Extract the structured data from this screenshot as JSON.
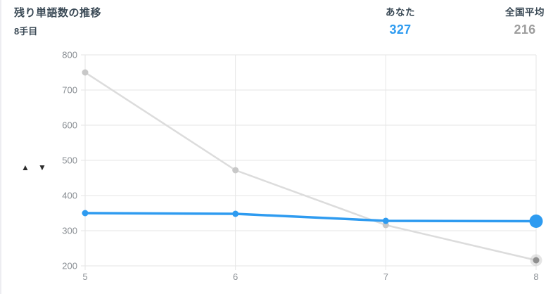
{
  "header": {
    "title": "残り単語数の推移",
    "move_label": "8手目",
    "you": {
      "label": "あなた",
      "value": "327"
    },
    "national": {
      "label": "全国平均",
      "value": "216"
    }
  },
  "controls": {
    "up_arrow": "▲",
    "down_arrow": "▼"
  },
  "colors": {
    "accent_blue": "#2e9bf0",
    "muted_gray": "#9e9e9e",
    "grid": "#e6e6e6",
    "axis_text": "#8a8f94",
    "title_text": "#3b4a56"
  },
  "chart_data": {
    "type": "line",
    "title": "残り単語数の推移",
    "x": [
      5,
      6,
      7,
      8
    ],
    "xtick_labels": [
      "5",
      "6",
      "7",
      "8"
    ],
    "xlabel": "",
    "ylabel": "",
    "ylim": [
      200,
      800
    ],
    "ytick_step": 100,
    "grid": true,
    "legend_position": "none",
    "series": [
      {
        "name": "全国平均",
        "values": [
          750,
          472,
          316,
          216
        ],
        "line_color": "#dcdcdc",
        "line_width": 2.5,
        "dot_color": "#c8c8c8",
        "dot_radius": 4.5,
        "last_point": {
          "halo_radius": 8.5,
          "halo_color": "#c4c4c4",
          "halo_opacity": 0.45,
          "core_radius": 4.5,
          "core_color": "#8f8f8f"
        }
      },
      {
        "name": "あなた",
        "values": [
          350,
          348,
          328,
          327
        ],
        "line_color": "#2e9bf0",
        "line_width": 3.5,
        "dot_color": "#2e9bf0",
        "dot_radius": 4.5,
        "last_point": {
          "halo_radius": 0,
          "core_radius": 9.5,
          "core_color": "#2e9bf0"
        }
      }
    ]
  }
}
